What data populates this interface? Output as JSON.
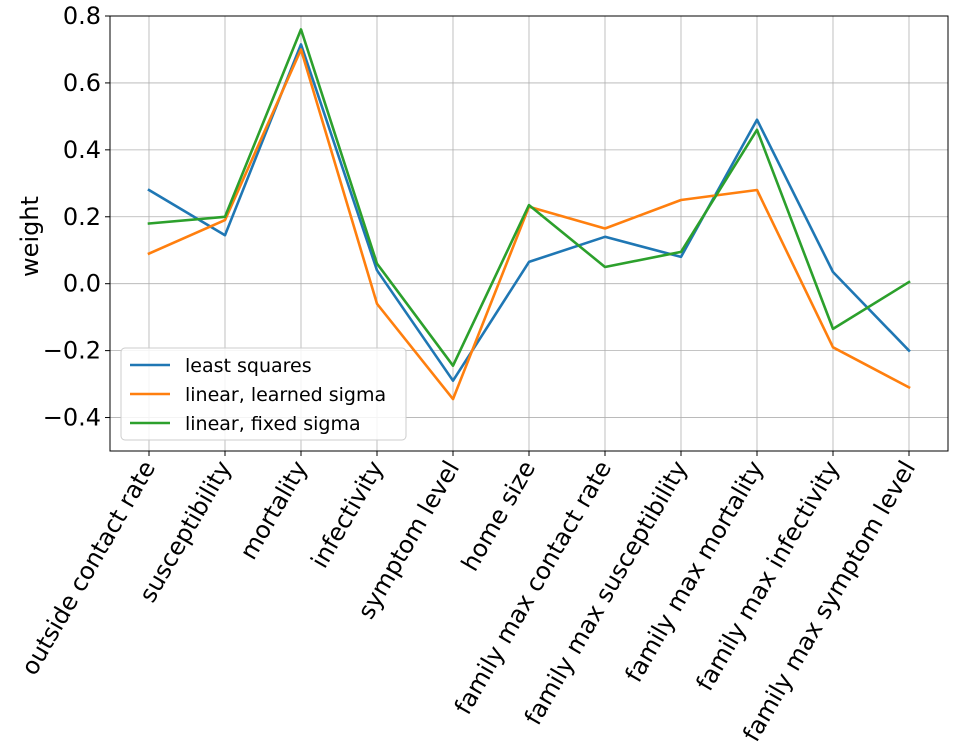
{
  "chart_data": {
    "type": "line",
    "ylabel": "weight",
    "ylim": [
      -0.5,
      0.8
    ],
    "yticks": [
      0.8,
      0.6,
      0.4,
      0.2,
      0.0,
      -0.2,
      -0.4
    ],
    "ytick_labels": [
      "0.8",
      "0.6",
      "0.4",
      "0.2",
      "0.0",
      "−0.2",
      "−0.4"
    ],
    "grid": true,
    "legend_position": "lower-left",
    "categories": [
      "outside contact rate",
      "susceptibility",
      "mortality",
      "infectivity",
      "symptom level",
      "home size",
      "family max contact rate",
      "family max susceptibility",
      "family max mortality",
      "family max infectivity",
      "family max symptom level"
    ],
    "series": [
      {
        "name": "least squares",
        "color": "#1f77b4",
        "values": [
          0.28,
          0.145,
          0.715,
          0.04,
          -0.29,
          0.065,
          0.14,
          0.08,
          0.49,
          0.035,
          -0.2
        ]
      },
      {
        "name": "linear, learned sigma",
        "color": "#ff7f0e",
        "values": [
          0.09,
          0.19,
          0.7,
          -0.06,
          -0.345,
          0.23,
          0.165,
          0.25,
          0.28,
          -0.19,
          -0.31
        ]
      },
      {
        "name": "linear, fixed sigma",
        "color": "#2ca02c",
        "values": [
          0.18,
          0.2,
          0.76,
          0.06,
          -0.245,
          0.235,
          0.05,
          0.095,
          0.46,
          -0.135,
          0.005
        ]
      }
    ]
  }
}
